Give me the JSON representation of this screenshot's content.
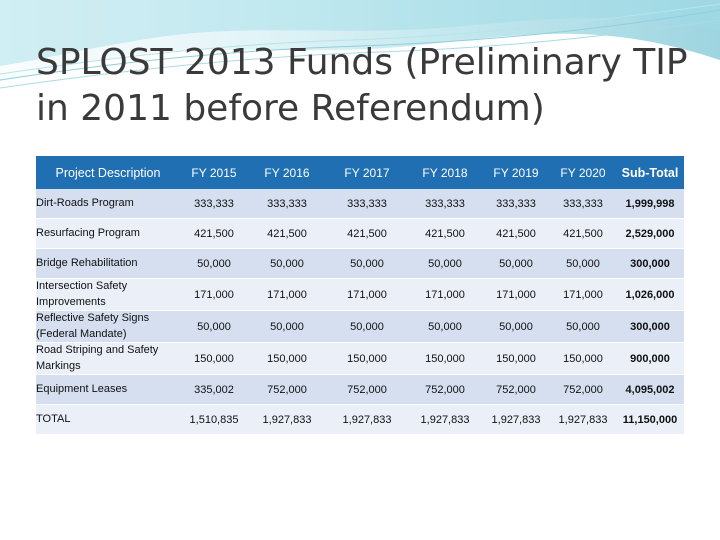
{
  "title": "SPLOST 2013 Funds (Preliminary TIP in 2011 before Referendum)",
  "table": {
    "headers": [
      "Project Description",
      "FY 2015",
      "FY 2016",
      "FY 2017",
      "FY 2018",
      "FY 2019",
      "FY 2020",
      "Sub-Total"
    ],
    "rows": [
      {
        "desc": "Dirt-Roads Program",
        "values": [
          "333,333",
          "333,333",
          "333,333",
          "333,333",
          "333,333",
          "333,333"
        ],
        "subtotal": "1,999,998"
      },
      {
        "desc": "Resurfacing Program",
        "values": [
          "421,500",
          "421,500",
          "421,500",
          "421,500",
          "421,500",
          "421,500"
        ],
        "subtotal": "2,529,000"
      },
      {
        "desc": "Bridge Rehabilitation",
        "values": [
          "50,000",
          "50,000",
          "50,000",
          "50,000",
          "50,000",
          "50,000"
        ],
        "subtotal": "300,000"
      },
      {
        "desc": "Intersection Safety Improvements",
        "values": [
          "171,000",
          "171,000",
          "171,000",
          "171,000",
          "171,000",
          "171,000"
        ],
        "subtotal": "1,026,000"
      },
      {
        "desc": "Reflective Safety Signs (Federal Mandate)",
        "values": [
          "50,000",
          "50,000",
          "50,000",
          "50,000",
          "50,000",
          "50,000"
        ],
        "subtotal": "300,000"
      },
      {
        "desc": "Road Striping and Safety Markings",
        "values": [
          "150,000",
          "150,000",
          "150,000",
          "150,000",
          "150,000",
          "150,000"
        ],
        "subtotal": "900,000"
      },
      {
        "desc": "Equipment Leases",
        "values": [
          "335,002",
          "752,000",
          "752,000",
          "752,000",
          "752,000",
          "752,000"
        ],
        "subtotal": "4,095,002"
      },
      {
        "desc": "TOTAL",
        "values": [
          "1,510,835",
          "1,927,833",
          "1,927,833",
          "1,927,833",
          "1,927,833",
          "1,927,833"
        ],
        "subtotal": "11,150,000"
      }
    ]
  },
  "colors": {
    "header": "#1f6fb2",
    "row_dark": "#d5dff0",
    "row_light": "#eaeff8",
    "wave": "#4bb3c8"
  }
}
